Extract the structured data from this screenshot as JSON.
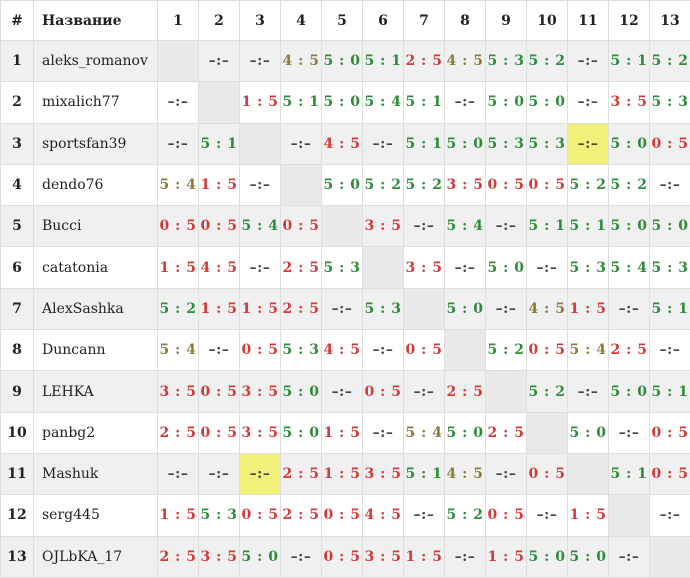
{
  "header": {
    "num": "#",
    "name": "Название",
    "cols": [
      "1",
      "2",
      "3",
      "4",
      "5",
      "6",
      "7",
      "8",
      "9",
      "10",
      "11",
      "12",
      "13"
    ]
  },
  "colors": {
    "win": "#2e8b3a",
    "loss": "#d23a3a",
    "draw": "#8b7b3a",
    "none": "#444444",
    "highlight": "#f0f07a"
  },
  "highlighted_cells": [
    [
      2,
      10
    ],
    [
      10,
      2
    ]
  ],
  "rows": [
    {
      "num": "1",
      "name": "aleks_romanov",
      "scores": [
        "",
        "–:–",
        "–:–",
        "4 : 5",
        "5 : 0",
        "5 : 1",
        "2 : 5",
        "4 : 5",
        "5 : 3",
        "5 : 2",
        "–:–",
        "5 : 1",
        "5 : 2"
      ],
      "types": [
        "self",
        "none",
        "none",
        "draw",
        "win",
        "win",
        "loss",
        "draw",
        "win",
        "win",
        "none",
        "win",
        "win"
      ]
    },
    {
      "num": "2",
      "name": "mixalich77",
      "scores": [
        "–:–",
        "",
        "1 : 5",
        "5 : 1",
        "5 : 0",
        "5 : 4",
        "5 : 1",
        "–:–",
        "5 : 0",
        "5 : 0",
        "–:–",
        "3 : 5",
        "5 : 3"
      ],
      "types": [
        "none",
        "self",
        "loss",
        "win",
        "win",
        "win",
        "win",
        "none",
        "win",
        "win",
        "none",
        "loss",
        "win"
      ]
    },
    {
      "num": "3",
      "name": "sportsfan39",
      "scores": [
        "–:–",
        "5 : 1",
        "",
        "–:–",
        "4 : 5",
        "–:–",
        "5 : 1",
        "5 : 0",
        "5 : 3",
        "5 : 3",
        "–:–",
        "5 : 0",
        "0 : 5"
      ],
      "types": [
        "none",
        "win",
        "self",
        "none",
        "loss",
        "none",
        "win",
        "win",
        "win",
        "win",
        "none",
        "win",
        "loss"
      ]
    },
    {
      "num": "4",
      "name": "dendo76",
      "scores": [
        "5 : 4",
        "1 : 5",
        "–:–",
        "",
        "5 : 0",
        "5 : 2",
        "5 : 2",
        "3 : 5",
        "0 : 5",
        "0 : 5",
        "5 : 2",
        "5 : 2",
        "–:–"
      ],
      "types": [
        "draw",
        "loss",
        "none",
        "self",
        "win",
        "win",
        "win",
        "loss",
        "loss",
        "loss",
        "win",
        "win",
        "none"
      ]
    },
    {
      "num": "5",
      "name": "Bucci",
      "scores": [
        "0 : 5",
        "0 : 5",
        "5 : 4",
        "0 : 5",
        "",
        "3 : 5",
        "–:–",
        "5 : 4",
        "–:–",
        "5 : 1",
        "5 : 1",
        "5 : 0",
        "5 : 0"
      ],
      "types": [
        "loss",
        "loss",
        "win",
        "loss",
        "self",
        "loss",
        "none",
        "win",
        "none",
        "win",
        "win",
        "win",
        "win"
      ]
    },
    {
      "num": "6",
      "name": "catatonia",
      "scores": [
        "1 : 5",
        "4 : 5",
        "–:–",
        "2 : 5",
        "5 : 3",
        "",
        "3 : 5",
        "–:–",
        "5 : 0",
        "–:–",
        "5 : 3",
        "5 : 4",
        "5 : 3"
      ],
      "types": [
        "loss",
        "loss",
        "none",
        "loss",
        "win",
        "self",
        "loss",
        "none",
        "win",
        "none",
        "win",
        "win",
        "win"
      ]
    },
    {
      "num": "7",
      "name": "AlexSashka",
      "scores": [
        "5 : 2",
        "1 : 5",
        "1 : 5",
        "2 : 5",
        "–:–",
        "5 : 3",
        "",
        "5 : 0",
        "–:–",
        "4 : 5",
        "1 : 5",
        "–:–",
        "5 : 1"
      ],
      "types": [
        "win",
        "loss",
        "loss",
        "loss",
        "none",
        "win",
        "self",
        "win",
        "none",
        "draw",
        "loss",
        "none",
        "win"
      ]
    },
    {
      "num": "8",
      "name": "Duncann",
      "scores": [
        "5 : 4",
        "–:–",
        "0 : 5",
        "5 : 3",
        "4 : 5",
        "–:–",
        "0 : 5",
        "",
        "5 : 2",
        "0 : 5",
        "5 : 4",
        "2 : 5",
        "–:–"
      ],
      "types": [
        "draw",
        "none",
        "loss",
        "win",
        "loss",
        "none",
        "loss",
        "self",
        "win",
        "loss",
        "draw",
        "loss",
        "none"
      ]
    },
    {
      "num": "9",
      "name": "LEHKA",
      "scores": [
        "3 : 5",
        "0 : 5",
        "3 : 5",
        "5 : 0",
        "–:–",
        "0 : 5",
        "–:–",
        "2 : 5",
        "",
        "5 : 2",
        "–:–",
        "5 : 0",
        "5 : 1"
      ],
      "types": [
        "loss",
        "loss",
        "loss",
        "win",
        "none",
        "loss",
        "none",
        "loss",
        "self",
        "win",
        "none",
        "win",
        "win"
      ]
    },
    {
      "num": "10",
      "name": "panbg2",
      "scores": [
        "2 : 5",
        "0 : 5",
        "3 : 5",
        "5 : 0",
        "1 : 5",
        "–:–",
        "5 : 4",
        "5 : 0",
        "2 : 5",
        "",
        "5 : 0",
        "–:–",
        "0 : 5"
      ],
      "types": [
        "loss",
        "loss",
        "loss",
        "win",
        "loss",
        "none",
        "draw",
        "win",
        "loss",
        "self",
        "win",
        "none",
        "loss"
      ]
    },
    {
      "num": "11",
      "name": "Mashuk",
      "scores": [
        "–:–",
        "–:–",
        "–:–",
        "2 : 5",
        "1 : 5",
        "3 : 5",
        "5 : 1",
        "4 : 5",
        "–:–",
        "0 : 5",
        "",
        "5 : 1",
        "0 : 5"
      ],
      "types": [
        "none",
        "none",
        "none",
        "loss",
        "loss",
        "loss",
        "win",
        "draw",
        "none",
        "loss",
        "self",
        "win",
        "loss"
      ]
    },
    {
      "num": "12",
      "name": "serg445",
      "scores": [
        "1 : 5",
        "5 : 3",
        "0 : 5",
        "2 : 5",
        "0 : 5",
        "4 : 5",
        "–:–",
        "5 : 2",
        "0 : 5",
        "–:–",
        "1 : 5",
        "",
        "–:–"
      ],
      "types": [
        "loss",
        "win",
        "loss",
        "loss",
        "loss",
        "loss",
        "none",
        "win",
        "loss",
        "none",
        "loss",
        "self",
        "none"
      ]
    },
    {
      "num": "13",
      "name": "OJLbKA_17",
      "scores": [
        "2 : 5",
        "3 : 5",
        "5 : 0",
        "–:–",
        "0 : 5",
        "3 : 5",
        "1 : 5",
        "–:–",
        "1 : 5",
        "5 : 0",
        "5 : 0",
        "–:–",
        ""
      ],
      "types": [
        "loss",
        "loss",
        "win",
        "none",
        "loss",
        "loss",
        "loss",
        "none",
        "loss",
        "win",
        "win",
        "none",
        "self"
      ]
    }
  ]
}
